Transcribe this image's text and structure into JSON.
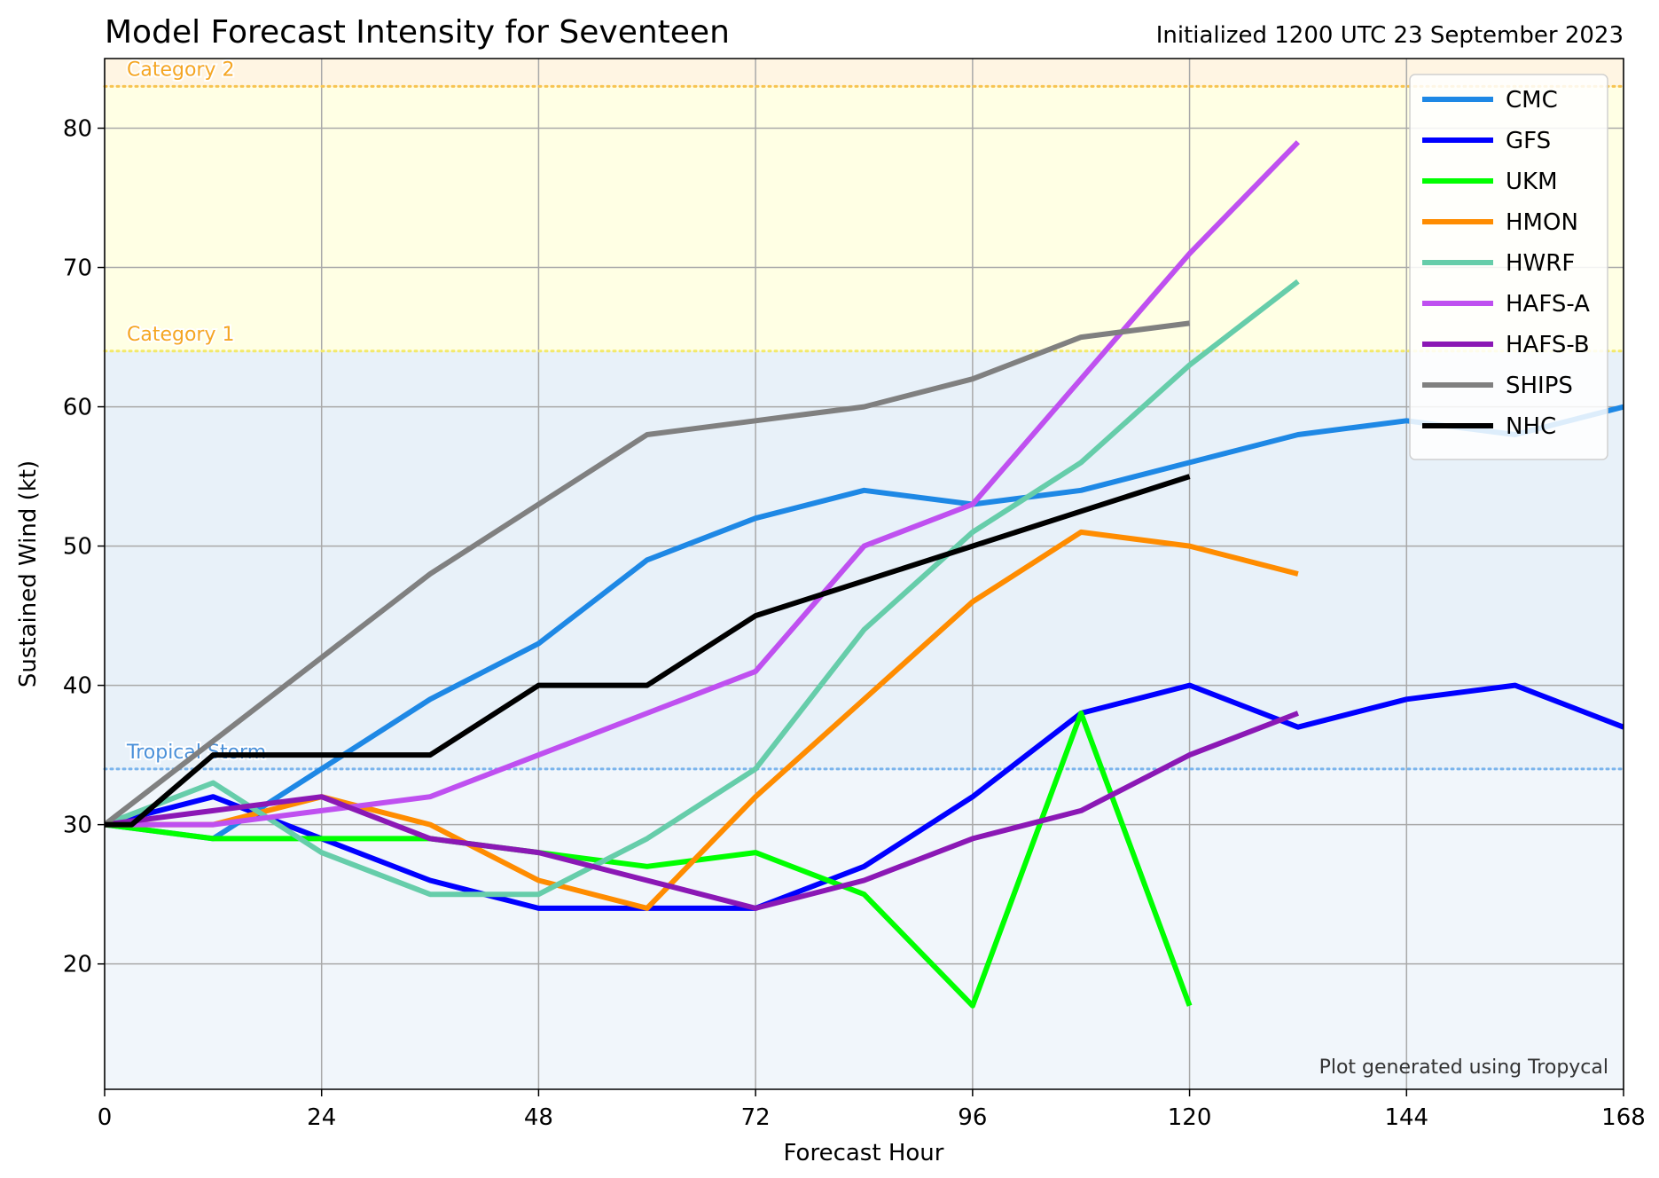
{
  "title": "Model Forecast Intensity for Seventeen",
  "subtitle": "Initialized 1200 UTC 23 September 2023",
  "credit": "Plot generated using Tropycal",
  "chart_data": {
    "type": "line",
    "xlabel": "Forecast Hour",
    "ylabel": "Sustained Wind (kt)",
    "xlim": [
      0,
      168
    ],
    "ylim": [
      11,
      85
    ],
    "xticks": [
      0,
      24,
      48,
      72,
      96,
      120,
      144,
      168
    ],
    "yticks": [
      20,
      30,
      40,
      50,
      60,
      70,
      80
    ],
    "grid": true,
    "legend_position": "top-right",
    "thresholds": [
      {
        "label": "Tropical Storm",
        "value": 34,
        "color": "#4a90d9"
      },
      {
        "label": "Category 1",
        "value": 64,
        "color": "#f5a623"
      },
      {
        "label": "Category 2",
        "value": 83,
        "color": "#f5a623"
      }
    ],
    "series": [
      {
        "name": "CMC",
        "color": "#1e88e5",
        "x": [
          0,
          12,
          24,
          36,
          48,
          60,
          72,
          84,
          96,
          108,
          120,
          132,
          144,
          156,
          168
        ],
        "y": [
          30,
          29,
          34,
          39,
          43,
          49,
          52,
          54,
          53,
          54,
          56,
          58,
          59,
          58,
          60
        ]
      },
      {
        "name": "GFS",
        "color": "#0000ff",
        "x": [
          0,
          12,
          24,
          36,
          48,
          60,
          72,
          84,
          96,
          108,
          120,
          132,
          144,
          156,
          168
        ],
        "y": [
          30,
          32,
          29,
          26,
          24,
          24,
          24,
          27,
          32,
          38,
          40,
          37,
          39,
          40,
          37
        ]
      },
      {
        "name": "UKM",
        "color": "#00ff00",
        "x": [
          0,
          12,
          24,
          36,
          48,
          60,
          72,
          84,
          96,
          108,
          120
        ],
        "y": [
          30,
          29,
          29,
          29,
          28,
          27,
          28,
          25,
          17,
          38,
          17
        ]
      },
      {
        "name": "HMON",
        "color": "#ff8c00",
        "x": [
          0,
          12,
          24,
          36,
          48,
          60,
          72,
          84,
          96,
          108,
          120,
          132
        ],
        "y": [
          30,
          30,
          32,
          30,
          26,
          24,
          32,
          39,
          46,
          51,
          50,
          48
        ]
      },
      {
        "name": "HWRF",
        "color": "#66cdaa",
        "x": [
          0,
          12,
          24,
          36,
          48,
          60,
          72,
          84,
          96,
          108,
          120,
          132
        ],
        "y": [
          30,
          33,
          28,
          25,
          25,
          29,
          34,
          44,
          51,
          56,
          63,
          69
        ]
      },
      {
        "name": "HAFS-A",
        "color": "#bf50f0",
        "x": [
          0,
          12,
          24,
          36,
          48,
          60,
          72,
          84,
          96,
          108,
          120,
          132
        ],
        "y": [
          30,
          30,
          31,
          32,
          35,
          38,
          41,
          50,
          53,
          62,
          71,
          79
        ]
      },
      {
        "name": "HAFS-B",
        "color": "#8b18b5",
        "x": [
          0,
          12,
          24,
          36,
          48,
          60,
          72,
          84,
          96,
          108,
          120,
          132
        ],
        "y": [
          30,
          31,
          32,
          29,
          28,
          26,
          24,
          26,
          29,
          31,
          35,
          38
        ]
      },
      {
        "name": "SHIPS",
        "color": "#808080",
        "x": [
          0,
          12,
          24,
          36,
          48,
          60,
          72,
          84,
          96,
          108,
          120
        ],
        "y": [
          30,
          36,
          42,
          48,
          53,
          58,
          59,
          60,
          62,
          65,
          66
        ]
      },
      {
        "name": "NHC",
        "color": "#000000",
        "x": [
          0,
          3,
          12,
          24,
          36,
          48,
          60,
          72,
          96,
          120
        ],
        "y": [
          30,
          30,
          35,
          35,
          35,
          40,
          40,
          45,
          50,
          55
        ]
      }
    ]
  }
}
